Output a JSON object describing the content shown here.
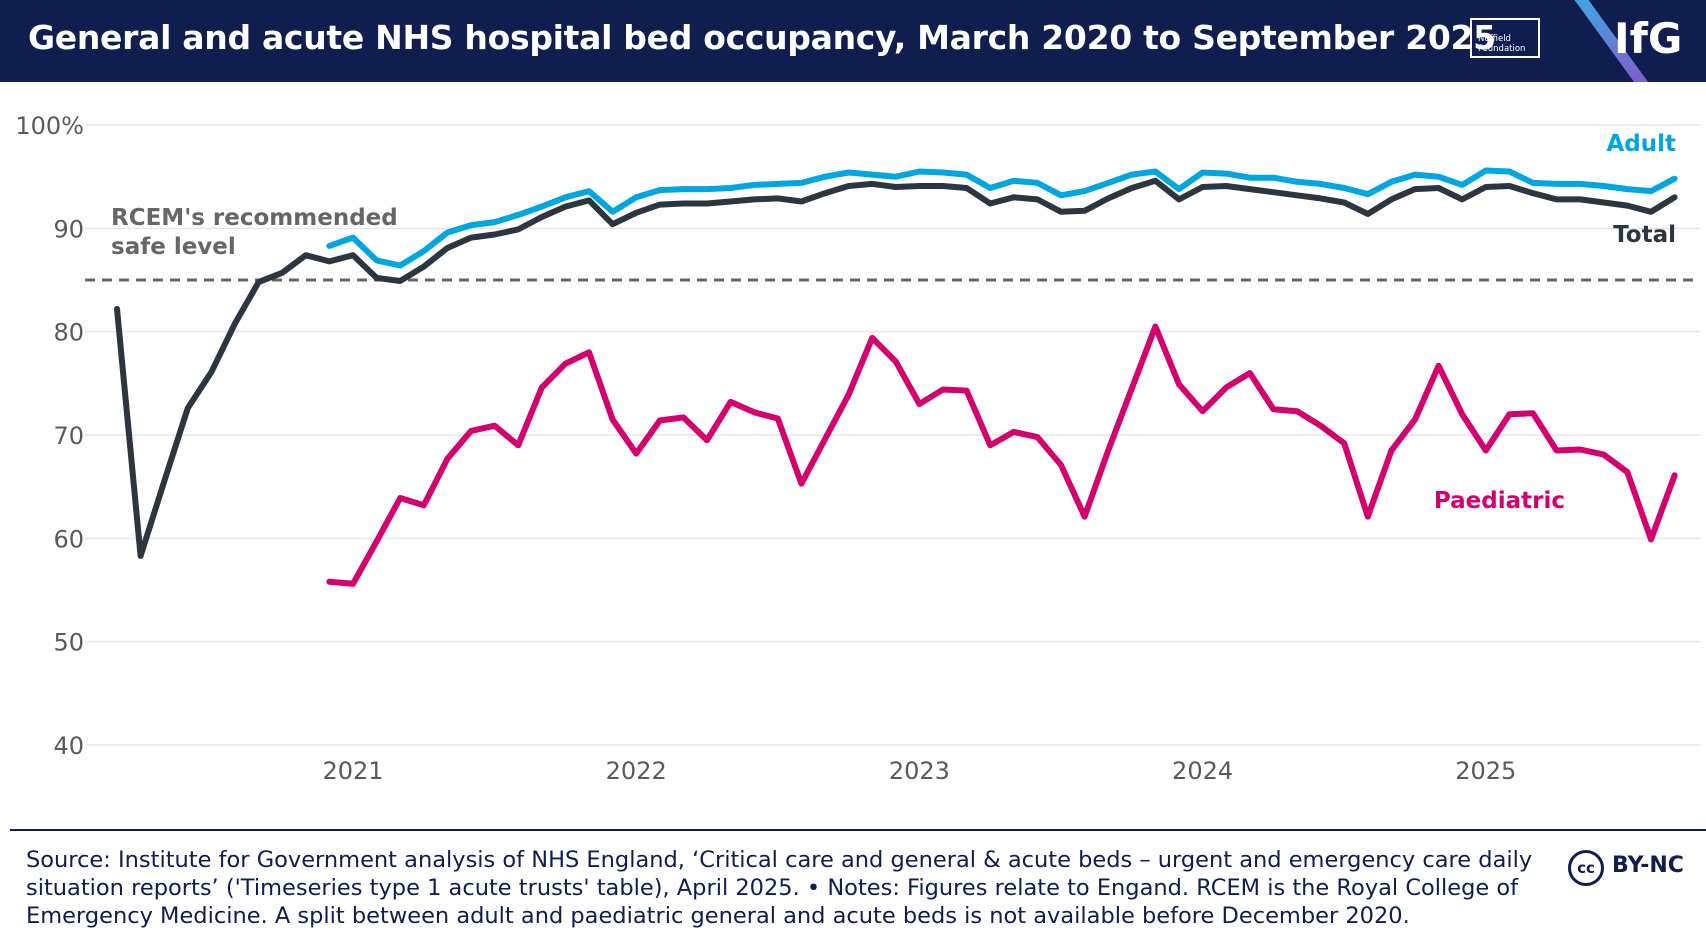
{
  "header": {
    "title": "General and acute NHS hospital bed occupancy, March 2020 to September 2025",
    "nuffield_line1": "Nuffield",
    "nuffield_line2": "Foundation",
    "logo": "IfG"
  },
  "colors": {
    "header_bg": "#0f1d4f",
    "adult": "#00a6e0",
    "total": "#2b3640",
    "paediatric": "#d4006e",
    "reference": "#666666",
    "grid": "#e6e6e6",
    "axis_text": "#5a5a5a"
  },
  "chart_data": {
    "type": "line",
    "title": "General and acute NHS hospital bed occupancy, March 2020 to September 2025",
    "xlabel": "",
    "ylabel": "",
    "ylim": [
      40,
      100
    ],
    "yticks": [
      40,
      50,
      60,
      70,
      80,
      90,
      100
    ],
    "ytick_labels": [
      "40",
      "50",
      "60",
      "70",
      "80",
      "90",
      "100%"
    ],
    "x_start": "2020-03",
    "x_end": "2025-09",
    "x_tick_labels": [
      {
        "label": "2021",
        "month_index": 10
      },
      {
        "label": "2022",
        "month_index": 22
      },
      {
        "label": "2023",
        "month_index": 34
      },
      {
        "label": "2024",
        "month_index": 46
      },
      {
        "label": "2025",
        "month_index": 58
      }
    ],
    "grid": true,
    "reference_line": {
      "value": 85,
      "label_line1": "RCEM's recommended",
      "label_line2": "safe level"
    },
    "series": [
      {
        "name": "Total",
        "label": "Total",
        "start_month_index": 0,
        "values": [
          82.2,
          58.3,
          65.5,
          72.6,
          76.1,
          80.8,
          84.8,
          85.7,
          87.4,
          86.8,
          87.4,
          85.2,
          84.9,
          86.3,
          88.1,
          89.1,
          89.4,
          89.9,
          91.1,
          92.1,
          92.7,
          90.4,
          91.5,
          92.3,
          92.4,
          92.4,
          92.6,
          92.8,
          92.9,
          92.6,
          93.4,
          94.1,
          94.3,
          94.0,
          94.1,
          94.1,
          93.9,
          92.4,
          93.0,
          92.8,
          91.6,
          91.7,
          92.9,
          93.9,
          94.6,
          92.8,
          94.0,
          94.1,
          93.8,
          93.5,
          93.2,
          92.9,
          92.5,
          91.4,
          92.8,
          93.8,
          93.9,
          92.8,
          94.0,
          94.1,
          93.4,
          92.8,
          92.8,
          92.5,
          92.2,
          91.6,
          93.0
        ]
      },
      {
        "name": "Adult",
        "label": "Adult",
        "start_month_index": 9,
        "values": [
          88.3,
          89.1,
          86.9,
          86.4,
          87.8,
          89.6,
          90.3,
          90.6,
          91.3,
          92.1,
          93.0,
          93.6,
          91.6,
          93.0,
          93.7,
          93.8,
          93.8,
          93.9,
          94.2,
          94.3,
          94.4,
          95.0,
          95.4,
          95.2,
          95.0,
          95.5,
          95.4,
          95.2,
          93.9,
          94.6,
          94.4,
          93.2,
          93.6,
          94.4,
          95.2,
          95.5,
          93.8,
          95.4,
          95.3,
          94.9,
          94.9,
          94.5,
          94.3,
          93.9,
          93.3,
          94.5,
          95.2,
          95.0,
          94.2,
          95.6,
          95.5,
          94.4,
          94.3,
          94.3,
          94.1,
          93.8,
          93.6,
          94.8
        ]
      },
      {
        "name": "Paediatric",
        "label": "Paediatric",
        "start_month_index": 9,
        "values": [
          55.8,
          55.6,
          59.7,
          63.9,
          63.2,
          67.7,
          70.4,
          70.9,
          69.0,
          74.6,
          76.9,
          78.0,
          71.5,
          68.2,
          71.4,
          71.7,
          69.5,
          73.2,
          72.2,
          71.6,
          65.3,
          69.6,
          73.9,
          79.4,
          77.1,
          73.0,
          74.4,
          74.3,
          69.0,
          70.3,
          69.8,
          67.1,
          62.1,
          68.5,
          74.5,
          80.5,
          74.9,
          72.3,
          74.6,
          76.0,
          72.5,
          72.3,
          70.9,
          69.2,
          62.1,
          68.5,
          71.5,
          76.7,
          72.0,
          68.5,
          72.0,
          72.1,
          68.5,
          68.6,
          68.1,
          66.4,
          59.9,
          66.1
        ]
      }
    ]
  },
  "footer": {
    "source_text": "Source: Institute for Government analysis of NHS England, ‘Critical care and general & acute beds – urgent and emergency care daily situation reports’ ('Timeseries type 1 acute trusts' table), April 2025. • Notes: Figures relate to Engand. RCEM is the Royal College of Emergency Medicine. A split between adult and paediatric general and acute beds is not available before December 2020.",
    "cc_label": "cc",
    "license": "BY-NC"
  }
}
